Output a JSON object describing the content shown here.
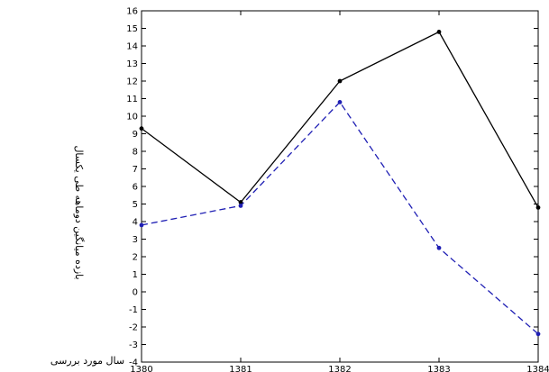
{
  "chart_data": {
    "type": "line",
    "title": "",
    "xlabel": "سال مورد بررسی",
    "ylabel": "بازده میانگین دوماهه طی یکسال",
    "x": [
      1380,
      1381,
      1382,
      1383,
      1384
    ],
    "xlim": [
      1380,
      1384
    ],
    "ylim": [
      -4,
      16
    ],
    "xticks": [
      "1380",
      "1381",
      "1382",
      "1383",
      "1384"
    ],
    "yticks": [
      "-4",
      "-3",
      "-2",
      "-1",
      "0",
      "1",
      "2",
      "3",
      "4",
      "5",
      "6",
      "7",
      "8",
      "9",
      "10",
      "11",
      "12",
      "13",
      "14",
      "15",
      "16"
    ],
    "grid": false,
    "series": [
      {
        "style": "solid",
        "color": "#000000",
        "values": [
          9.3,
          5.1,
          12.0,
          14.8,
          4.8
        ]
      },
      {
        "style": "dashed",
        "color": "#1f1fb4",
        "values": [
          3.8,
          4.9,
          10.8,
          2.5,
          -2.4
        ]
      }
    ]
  }
}
